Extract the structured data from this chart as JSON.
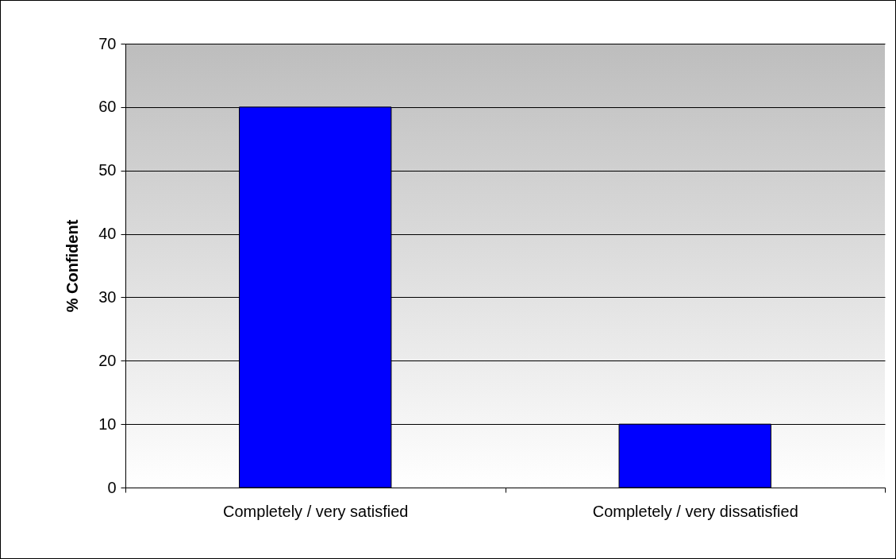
{
  "chart_data": {
    "type": "bar",
    "ylabel": "% Confident",
    "categories": [
      "Completely / very satisfied",
      "Completely / very dissatisfied"
    ],
    "values": [
      60,
      10
    ],
    "color": "#0000ff",
    "ylim": [
      0,
      70
    ],
    "yticks": [
      0,
      10,
      20,
      30,
      40,
      50,
      60,
      70
    ],
    "grid": "y"
  }
}
